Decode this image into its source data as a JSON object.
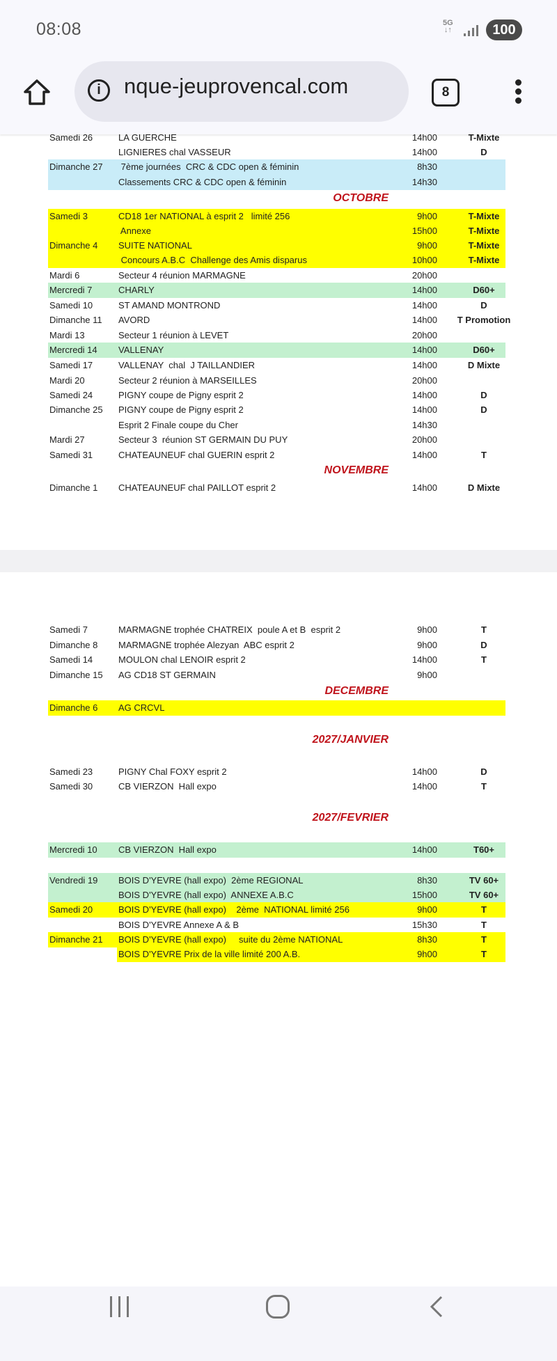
{
  "status_bar": {
    "time": "08:08",
    "network": "5G",
    "battery": "100"
  },
  "browser": {
    "url": "nque-jeuprovencal.com",
    "tab_count": "8",
    "icons": [
      "home-icon",
      "info-icon",
      "tabs-icon",
      "menu-icon"
    ]
  },
  "colors": {
    "yellow": "#ffff00",
    "blue": "#c9ecf8",
    "green": "#c3f0cf",
    "month": "#c0141c"
  },
  "schedule": [
    {
      "date": "Samedi 26",
      "event": "LA GUERCHE",
      "time": "14h00",
      "cat": "T-Mixte"
    },
    {
      "date": "",
      "event": "LIGNIERES chal VASSEUR",
      "time": "14h00",
      "cat": "D"
    },
    {
      "date": "Dimanche 27",
      "event": " 7ème journées  CRC & CDC open & féminin",
      "time": "8h30",
      "cat": "",
      "bg": "blue"
    },
    {
      "date": "",
      "event": "Classements CRC & CDC open & féminin",
      "time": "14h30",
      "cat": "",
      "bg": "blue"
    },
    {
      "month": "OCTOBRE"
    },
    {
      "date": "Samedi 3",
      "event": "CD18 1er NATIONAL à esprit 2   limité 256",
      "time": "9h00",
      "cat": "T-Mixte",
      "bg": "yellow"
    },
    {
      "date": "",
      "event": " Annexe",
      "time": "15h00",
      "cat": "T-Mixte",
      "bg": "yellow"
    },
    {
      "date": "Dimanche 4",
      "event": "SUITE NATIONAL",
      "time": "9h00",
      "cat": "T-Mixte",
      "bg": "yellow"
    },
    {
      "date": "",
      "event": " Concours A.B.C  Challenge des Amis disparus",
      "time": "10h00",
      "cat": "T-Mixte",
      "bg": "yellow"
    },
    {
      "date": "Mardi 6",
      "event": "Secteur 4 réunion MARMAGNE",
      "time": "20h00",
      "cat": ""
    },
    {
      "date": "Mercredi 7",
      "event": "CHARLY",
      "time": "14h00",
      "cat": "D60+",
      "bg": "green"
    },
    {
      "date": "Samedi 10",
      "event": "ST AMAND MONTROND",
      "time": "14h00",
      "cat": "D"
    },
    {
      "date": "Dimanche 11",
      "event": "AVORD",
      "time": "14h00",
      "cat": "T Promotion"
    },
    {
      "date": "Mardi 13",
      "event": "Secteur 1 réunion à LEVET",
      "time": "20h00",
      "cat": ""
    },
    {
      "date": "Mercredi 14",
      "event": "VALLENAY",
      "time": "14h00",
      "cat": "D60+",
      "bg": "green"
    },
    {
      "date": "Samedi 17",
      "event": "VALLENAY  chal  J TAILLANDIER",
      "time": "14h00",
      "cat": "D Mixte"
    },
    {
      "date": "Mardi 20",
      "event": "Secteur 2 réunion à MARSEILLES",
      "time": "20h00",
      "cat": ""
    },
    {
      "date": "Samedi 24",
      "event": "PIGNY coupe de Pigny esprit 2",
      "time": "14h00",
      "cat": "D"
    },
    {
      "date": "Dimanche 25",
      "event": "PIGNY coupe de Pigny esprit 2",
      "time": "14h00",
      "cat": "D"
    },
    {
      "date": "",
      "event": "Esprit 2 Finale coupe du Cher",
      "time": "14h30",
      "cat": ""
    },
    {
      "date": "Mardi 27",
      "event": "Secteur 3  réunion ST GERMAIN DU PUY",
      "time": "20h00",
      "cat": ""
    },
    {
      "date": "Samedi 31",
      "event": "CHATEAUNEUF chal GUERIN esprit 2",
      "time": "14h00",
      "cat": "T"
    },
    {
      "month": "NOVEMBRE"
    },
    {
      "date": "Dimanche 1",
      "event": "CHATEAUNEUF chal PAILLOT esprit 2",
      "time": "14h00",
      "cat": "D Mixte"
    },
    {
      "date": "Samedi 7",
      "event": "MARMAGNE trophée CHATREIX  poule A et B  esprit 2",
      "time": "9h00",
      "cat": "T"
    },
    {
      "date": "Dimanche 8",
      "event": "MARMAGNE trophée Alezyan  ABC esprit 2",
      "time": "9h00",
      "cat": "D"
    },
    {
      "date": "Samedi 14",
      "event": "MOULON chal LENOIR esprit 2",
      "time": "14h00",
      "cat": "T"
    },
    {
      "date": "Dimanche 15",
      "event": "AG CD18 ST GERMAIN",
      "time": "9h00",
      "cat": ""
    },
    {
      "month": "DECEMBRE"
    },
    {
      "date": "Dimanche 6",
      "event": "AG CRCVL",
      "time": "",
      "cat": "",
      "bg": "yellow"
    },
    {
      "month": "2027/JANVIER"
    },
    {
      "date": "Samedi 23",
      "event": "PIGNY Chal FOXY esprit 2",
      "time": "14h00",
      "cat": "D"
    },
    {
      "date": "Samedi 30",
      "event": "CB VIERZON  Hall expo",
      "time": "14h00",
      "cat": "T"
    },
    {
      "month": "2027/FEVRIER"
    },
    {
      "date": "Mercredi 10",
      "event": "CB VIERZON  Hall expo",
      "time": "14h00",
      "cat": "T60+",
      "bg": "green"
    },
    {
      "date": "Vendredi 19",
      "event": "BOIS D'YEVRE (hall expo)  2ème REGIONAL",
      "time": "8h30",
      "cat": "TV 60+",
      "bg": "green"
    },
    {
      "date": "",
      "event": "BOIS D'YEVRE (hall expo)  ANNEXE A.B.C",
      "time": "15h00",
      "cat": "TV 60+",
      "bg": "green"
    },
    {
      "date": "Samedi 20",
      "event": "BOIS D'YEVRE (hall expo)    2ème  NATIONAL limité 256",
      "time": "9h00",
      "cat": "T",
      "bg": "yellow"
    },
    {
      "date": "",
      "event": "BOIS D'YEVRE Annexe A & B",
      "time": "15h30",
      "cat": "T"
    },
    {
      "date": "Dimanche 21",
      "event": "BOIS D'YEVRE (hall expo)     suite du 2ème NATIONAL",
      "time": "8h30",
      "cat": "T",
      "bg": "yellow"
    },
    {
      "date": "",
      "event": "BOIS D'YEVRE Prix de la ville limité 200 A.B.",
      "time": "9h00",
      "cat": "T",
      "bg": "yellow",
      "bg_from_event": true
    }
  ],
  "nav": {
    "icons": [
      "recent-apps-icon",
      "home-circle-icon",
      "back-icon"
    ]
  }
}
